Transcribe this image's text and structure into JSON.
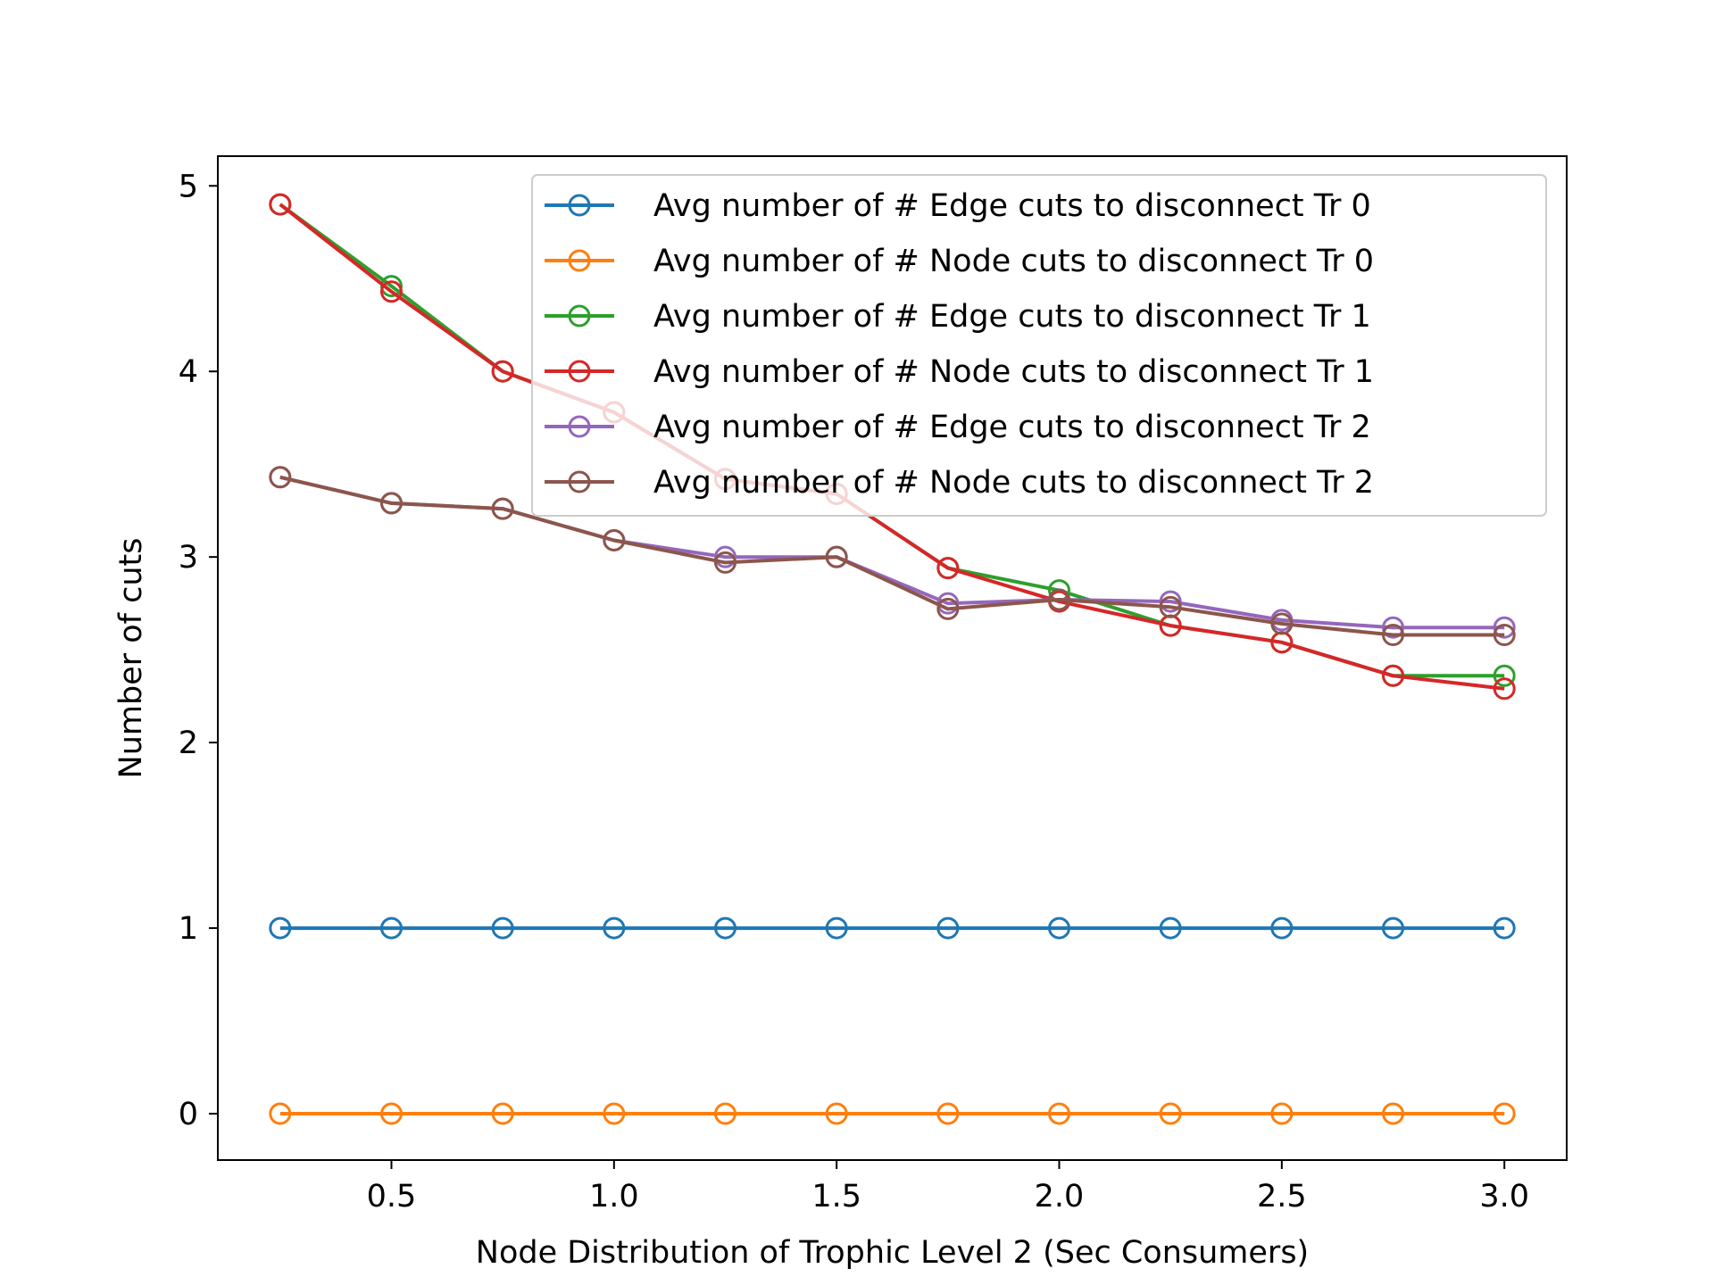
{
  "chart_data": {
    "type": "line",
    "title": "",
    "xlabel": "Node Distribution of Trophic Level 2 (Sec Consumers)",
    "ylabel": "Number of cuts",
    "xlim": [
      0.11,
      3.14
    ],
    "ylim": [
      -0.25,
      5.16
    ],
    "x_ticks": [
      0.5,
      1.0,
      1.5,
      2.0,
      2.5,
      3.0
    ],
    "x_tick_labels": [
      "0.5",
      "1.0",
      "1.5",
      "2.0",
      "2.5",
      "3.0"
    ],
    "y_ticks": [
      0,
      1,
      2,
      3,
      4,
      5
    ],
    "y_tick_labels": [
      "0",
      "1",
      "2",
      "3",
      "4",
      "5"
    ],
    "grid": false,
    "legend_position": "top-right",
    "marker": "open-circle",
    "x": [
      0.25,
      0.5,
      0.75,
      1.0,
      1.25,
      1.5,
      1.75,
      2.0,
      2.25,
      2.5,
      2.75,
      3.0
    ],
    "series": [
      {
        "name": "Avg number of # Edge cuts to disconnect Tr 0",
        "color": "#1f77b4",
        "values": [
          1,
          1,
          1,
          1,
          1,
          1,
          1,
          1,
          1,
          1,
          1,
          1
        ]
      },
      {
        "name": "Avg number of # Node cuts to disconnect Tr 0",
        "color": "#ff7f0e",
        "values": [
          0,
          0,
          0,
          0,
          0,
          0,
          0,
          0,
          0,
          0,
          0,
          0
        ]
      },
      {
        "name": "Avg number of # Edge cuts to disconnect Tr 1",
        "color": "#2ca02c",
        "values": [
          4.9,
          4.46,
          4.0,
          3.78,
          3.42,
          3.34,
          2.94,
          2.82,
          2.63,
          2.54,
          2.36,
          2.36
        ]
      },
      {
        "name": "Avg number of # Node cuts to disconnect Tr 1",
        "color": "#d62728",
        "values": [
          4.9,
          4.43,
          4.0,
          3.78,
          3.42,
          3.34,
          2.94,
          2.76,
          2.63,
          2.54,
          2.36,
          2.29
        ]
      },
      {
        "name": "Avg number of # Edge cuts to disconnect Tr 2",
        "color": "#9467bd",
        "values": [
          3.43,
          3.29,
          3.26,
          3.09,
          3.0,
          3.0,
          2.75,
          2.77,
          2.76,
          2.66,
          2.62,
          2.62
        ]
      },
      {
        "name": "Avg number of # Node cuts to disconnect Tr 2",
        "color": "#8c564b",
        "values": [
          3.43,
          3.29,
          3.26,
          3.09,
          2.97,
          3.0,
          2.72,
          2.77,
          2.73,
          2.64,
          2.58,
          2.58
        ]
      }
    ]
  }
}
